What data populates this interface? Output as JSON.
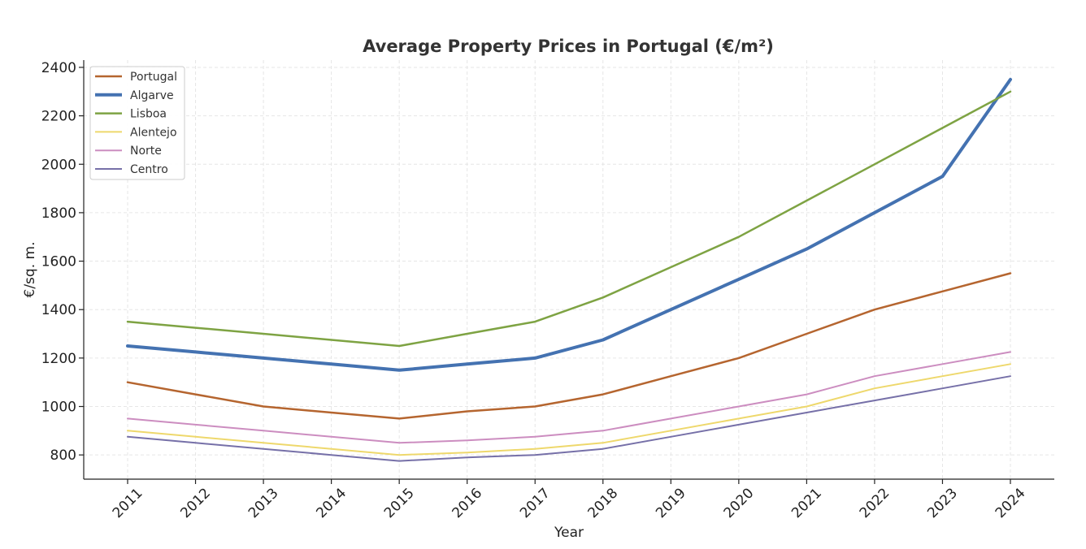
{
  "chart_data": {
    "type": "line",
    "title": "Average Property Prices in Portugal (€/m²)",
    "xlabel": "Year",
    "ylabel": "€/sq. m.",
    "x": [
      "2011",
      "2012",
      "2013",
      "2014",
      "2015",
      "2016",
      "2017",
      "2018",
      "2019",
      "2020",
      "2021",
      "2022",
      "2023",
      "2024"
    ],
    "yticks": [
      800,
      1000,
      1200,
      1400,
      1600,
      1800,
      2000,
      2200,
      2400
    ],
    "ylim": [
      700,
      2430
    ],
    "grid": true,
    "legend_position": "top-left",
    "series": [
      {
        "name": "Portugal",
        "color": "#b5652f",
        "width": 2.5,
        "values": [
          1100,
          1050,
          1000,
          975,
          950,
          980,
          1000,
          1050,
          1125,
          1200,
          1300,
          1400,
          1475,
          1550
        ]
      },
      {
        "name": "Algarve",
        "color": "#4472b1",
        "width": 4,
        "values": [
          1250,
          1225,
          1200,
          1175,
          1150,
          1175,
          1200,
          1275,
          1400,
          1525,
          1650,
          1800,
          1950,
          2350
        ]
      },
      {
        "name": "Lisboa",
        "color": "#7ea343",
        "width": 2.5,
        "values": [
          1350,
          1325,
          1300,
          1275,
          1250,
          1300,
          1350,
          1450,
          1575,
          1700,
          1850,
          2000,
          2150,
          2300
        ]
      },
      {
        "name": "Alentejo",
        "color": "#eed86c",
        "width": 2,
        "values": [
          900,
          875,
          850,
          825,
          800,
          810,
          825,
          850,
          900,
          950,
          1000,
          1075,
          1125,
          1175
        ]
      },
      {
        "name": "Norte",
        "color": "#cc8dc0",
        "width": 2,
        "values": [
          950,
          925,
          900,
          875,
          850,
          860,
          875,
          900,
          950,
          1000,
          1050,
          1125,
          1175,
          1225
        ]
      },
      {
        "name": "Centro",
        "color": "#7670a8",
        "width": 2,
        "values": [
          875,
          850,
          825,
          800,
          775,
          790,
          800,
          825,
          875,
          925,
          975,
          1025,
          1075,
          1125
        ]
      }
    ]
  }
}
